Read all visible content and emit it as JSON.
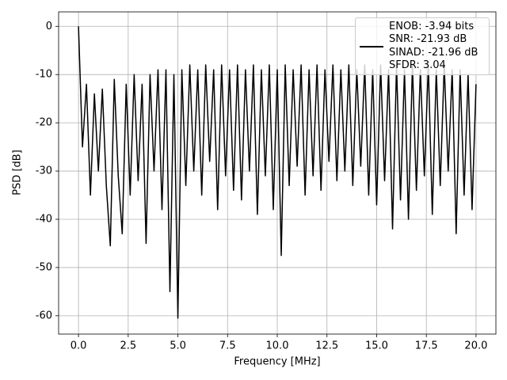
{
  "chart_data": {
    "type": "line",
    "xlabel": "Frequency [MHz]",
    "ylabel": "PSD [dB]",
    "xlim": [
      -1.0,
      21.0
    ],
    "ylim": [
      -63.8,
      3
    ],
    "xticks": [
      {
        "value": 0,
        "label": "0.0"
      },
      {
        "value": 2.5,
        "label": "2.5"
      },
      {
        "value": 5,
        "label": "5.0"
      },
      {
        "value": 7.5,
        "label": "7.5"
      },
      {
        "value": 10,
        "label": "10.0"
      },
      {
        "value": 12.5,
        "label": "12.5"
      },
      {
        "value": 15,
        "label": "15.0"
      },
      {
        "value": 17.5,
        "label": "17.5"
      },
      {
        "value": 20,
        "label": "20.0"
      }
    ],
    "yticks": [
      0,
      -10,
      -20,
      -30,
      -40,
      -50,
      -60
    ],
    "grid": true,
    "legend": "upper right",
    "series": [
      {
        "name": "ENOB: -3.94 bits\nSNR: -21.93 dB\nSINAD: -21.96 dB\nSFDR: 3.04",
        "color": "#000000",
        "x": [
          0,
          0.2,
          0.4,
          0.6,
          0.8,
          1.0,
          1.2,
          1.4,
          1.6,
          1.8,
          2.0,
          2.2,
          2.4,
          2.6,
          2.8,
          3.0,
          3.2,
          3.4,
          3.6,
          3.8,
          4.0,
          4.2,
          4.4,
          4.6,
          4.8,
          5.0,
          5.2,
          5.4,
          5.6,
          5.8,
          6.0,
          6.2,
          6.4,
          6.6,
          6.8,
          7.0,
          7.2,
          7.4,
          7.6,
          7.8,
          8.0,
          8.2,
          8.4,
          8.6,
          8.8,
          9.0,
          9.2,
          9.4,
          9.6,
          9.8,
          10.0,
          10.2,
          10.4,
          10.6,
          10.8,
          11.0,
          11.2,
          11.4,
          11.6,
          11.8,
          12.0,
          12.2,
          12.4,
          12.6,
          12.8,
          13.0,
          13.2,
          13.4,
          13.6,
          13.8,
          14.0,
          14.2,
          14.4,
          14.6,
          14.8,
          15.0,
          15.2,
          15.4,
          15.6,
          15.8,
          16.0,
          16.2,
          16.4,
          16.6,
          16.8,
          17.0,
          17.2,
          17.4,
          17.6,
          17.8,
          18.0,
          18.2,
          18.4,
          18.6,
          18.8,
          19.0,
          19.2,
          19.4,
          19.6,
          19.8,
          20.0
        ],
        "values": [
          0,
          -25,
          -12,
          -35,
          -14,
          -30,
          -13,
          -33,
          -45.5,
          -11,
          -31,
          -43,
          -12,
          -35,
          -10,
          -32,
          -12,
          -45,
          -10,
          -30,
          -9,
          -38,
          -9,
          -55,
          -10,
          -60.5,
          -9,
          -33,
          -8,
          -30,
          -9,
          -35,
          -8,
          -28,
          -9,
          -38,
          -8,
          -31,
          -9,
          -34,
          -8,
          -36,
          -9,
          -30,
          -8,
          -39,
          -9,
          -31,
          -8,
          -38,
          -9,
          -47.5,
          -8,
          -33,
          -9,
          -29,
          -8,
          -35,
          -9,
          -31,
          -8,
          -34,
          -9,
          -28,
          -8,
          -32,
          -9,
          -30,
          -8,
          -33,
          -9,
          -29,
          -8,
          -35,
          -9,
          -37,
          -8,
          -32,
          -9,
          -42,
          -8,
          -36,
          -9,
          -40,
          -8,
          -34,
          -9,
          -31,
          -8,
          -39,
          -9,
          -33,
          -8,
          -30,
          -9,
          -43,
          -9,
          -35,
          -10,
          -38,
          -12
        ]
      }
    ]
  }
}
